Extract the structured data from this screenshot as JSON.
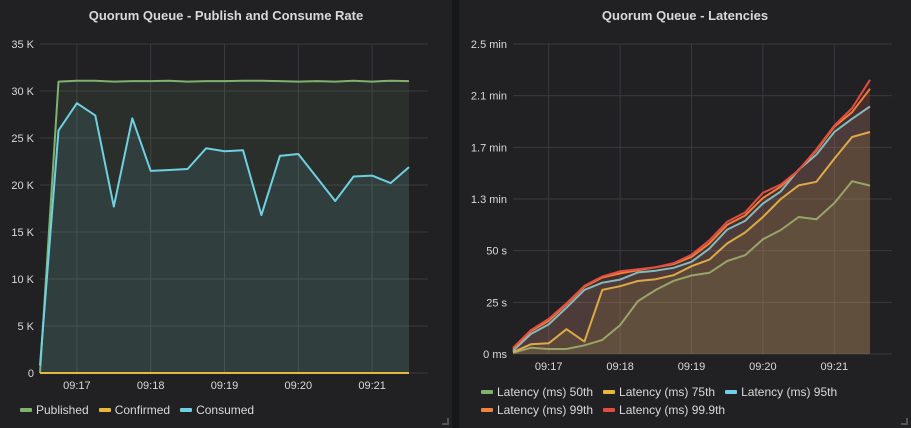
{
  "colors": {
    "green": "#7EB26D",
    "yellow": "#EAB839",
    "blue": "#6ED0E0",
    "orange": "#EF843C",
    "red": "#E24D42"
  },
  "chart_data": [
    {
      "type": "area",
      "title": "Quorum Queue - Publish and Consume Rate",
      "x": [
        "09:16:30",
        "09:16:45",
        "09:17:00",
        "09:17:15",
        "09:17:30",
        "09:17:45",
        "09:18:00",
        "09:18:15",
        "09:18:30",
        "09:18:45",
        "09:19:00",
        "09:19:15",
        "09:19:30",
        "09:19:45",
        "09:20:00",
        "09:20:15",
        "09:20:30",
        "09:20:45",
        "09:21:00",
        "09:21:15",
        "09:21:30"
      ],
      "xticks": [
        "09:17",
        "09:18",
        "09:19",
        "09:20",
        "09:21"
      ],
      "yticks": [
        "0",
        "5 K",
        "10 K",
        "15 K",
        "20 K",
        "25 K",
        "30 K",
        "35 K"
      ],
      "ylim": [
        0,
        35000
      ],
      "grid": true,
      "legend": "bottom",
      "series": [
        {
          "name": "Published",
          "color": "#7EB26D",
          "values": [
            0,
            31000,
            31100,
            31100,
            31000,
            31050,
            31050,
            31100,
            31000,
            31050,
            31050,
            31100,
            31100,
            31050,
            31000,
            31050,
            31000,
            31100,
            31000,
            31100,
            31050
          ]
        },
        {
          "name": "Confirmed",
          "color": "#EAB839",
          "values": [
            0,
            0,
            0,
            0,
            0,
            0,
            0,
            0,
            0,
            0,
            0,
            0,
            0,
            0,
            0,
            0,
            0,
            0,
            0,
            0,
            0
          ]
        },
        {
          "name": "Consumed",
          "color": "#6ED0E0",
          "values": [
            800,
            25800,
            28700,
            27400,
            17700,
            27100,
            21500,
            21600,
            21700,
            23900,
            23600,
            23700,
            16800,
            23100,
            23300,
            20800,
            18300,
            20900,
            21000,
            20200,
            21900
          ]
        }
      ]
    },
    {
      "type": "area",
      "title": "Quorum Queue - Latencies",
      "x": [
        "09:16:30",
        "09:16:45",
        "09:17:00",
        "09:17:15",
        "09:17:30",
        "09:17:45",
        "09:18:00",
        "09:18:15",
        "09:18:30",
        "09:18:45",
        "09:19:00",
        "09:19:15",
        "09:19:30",
        "09:19:45",
        "09:20:00",
        "09:20:15",
        "09:20:30",
        "09:20:45",
        "09:21:00",
        "09:21:15",
        "09:21:30"
      ],
      "xticks": [
        "09:17",
        "09:18",
        "09:19",
        "09:20",
        "09:21"
      ],
      "yticks": [
        "0 ms",
        "25 s",
        "50 s",
        "1.3 min",
        "1.7 min",
        "2.1 min",
        "2.5 min"
      ],
      "ylim_seconds": [
        0,
        150
      ],
      "grid": true,
      "legend": "bottom",
      "series": [
        {
          "name": "Latency (ms) 50th",
          "color": "#7EB26D",
          "values_seconds": [
            0.6,
            3,
            2.4,
            2.4,
            4.2,
            6.8,
            14,
            25.6,
            31,
            35.4,
            38,
            39.3,
            45,
            47.8,
            55.5,
            60,
            66.3,
            65.2,
            73,
            83.6,
            81.5
          ]
        },
        {
          "name": "Latency (ms) 75th",
          "color": "#EAB839",
          "values_seconds": [
            0.8,
            4.7,
            5.2,
            12,
            6,
            31,
            32.8,
            35.3,
            36.2,
            38.2,
            42.5,
            45.7,
            53.5,
            58.8,
            66.3,
            75,
            81.6,
            83.3,
            94.5,
            105,
            107.4
          ]
        },
        {
          "name": "Latency (ms) 95th",
          "color": "#6ED0E0",
          "values_seconds": [
            1.5,
            9.7,
            14.3,
            22.4,
            31,
            34.5,
            36,
            39.5,
            40.3,
            41.7,
            44.6,
            51,
            60.2,
            64.4,
            72.8,
            78.7,
            89.2,
            96.5,
            107.4,
            113.8,
            119.8
          ]
        },
        {
          "name": "Latency (ms) 99th",
          "color": "#EF843C",
          "values_seconds": [
            2.5,
            11,
            16,
            24,
            32.5,
            37,
            39,
            40.5,
            42,
            43.5,
            47,
            53.5,
            62.5,
            67,
            75.5,
            81,
            89,
            98.5,
            110,
            117,
            128.3
          ]
        },
        {
          "name": "Latency (ms) 99.9th",
          "color": "#E24D42",
          "values_seconds": [
            3,
            11.5,
            17,
            24.5,
            33,
            37.5,
            40,
            41,
            42,
            44,
            48,
            55,
            64,
            68.5,
            78,
            82,
            89,
            99,
            110.5,
            119,
            132.7
          ]
        }
      ]
    }
  ]
}
